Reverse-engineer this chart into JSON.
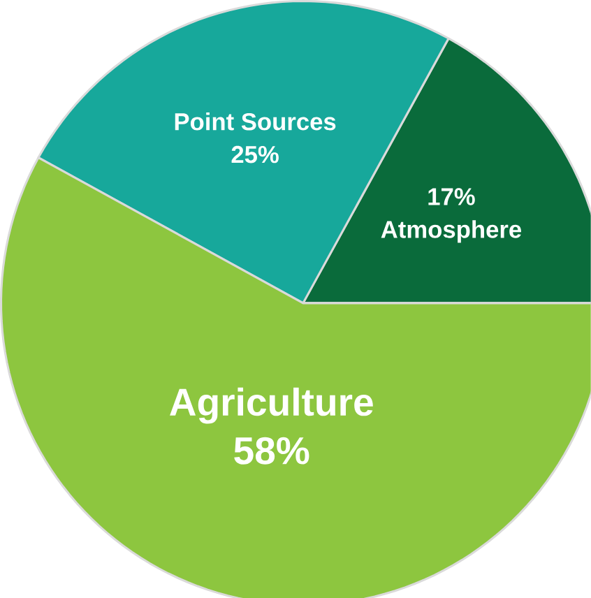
{
  "chart_data": {
    "type": "pie",
    "categories": [
      "Atmosphere",
      "Point Sources",
      "Agriculture"
    ],
    "values": [
      17,
      25,
      58
    ],
    "colors": [
      "#0a6b3b",
      "#17a89b",
      "#8dc63f"
    ],
    "value_labels": [
      "17%",
      "25%",
      "58%"
    ]
  }
}
